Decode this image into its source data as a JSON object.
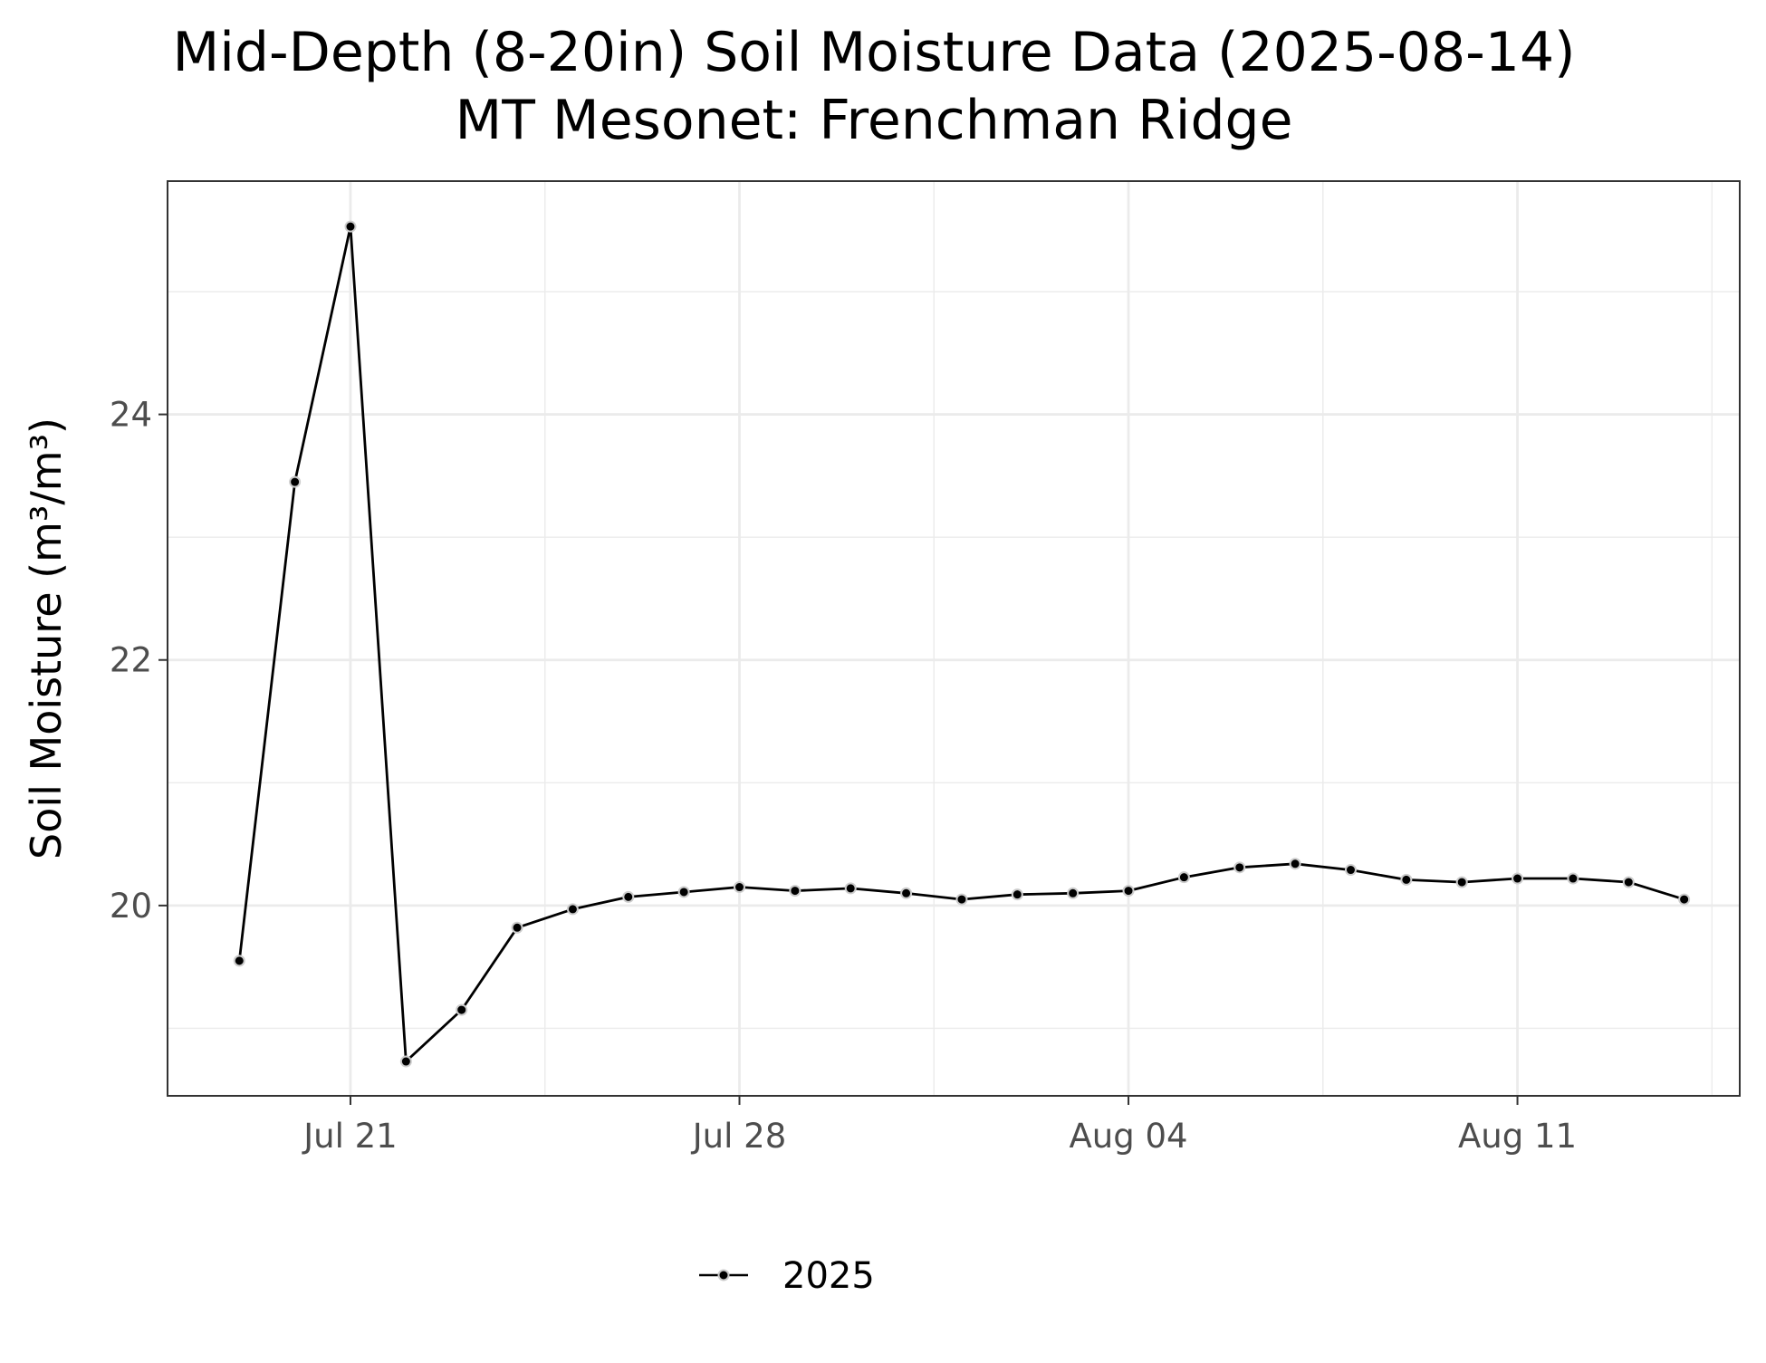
{
  "chart_data": {
    "type": "line",
    "title": "Mid-Depth (8-20in) Soil Moisture Data (2025-08-14)",
    "subtitle": "MT Mesonet: Frenchman Ridge",
    "xlabel": "",
    "ylabel": "Soil Moisture (m³/m³)",
    "x_ticks": [
      {
        "date": "2025-07-21",
        "label": "Jul 21"
      },
      {
        "date": "2025-07-28",
        "label": "Jul 28"
      },
      {
        "date": "2025-08-04",
        "label": "Aug 04"
      },
      {
        "date": "2025-08-11",
        "label": "Aug 11"
      }
    ],
    "y_ticks": [
      20,
      22,
      24
    ],
    "xlim": [
      "2025-07-17T17:00",
      "2025-08-15T00:00"
    ],
    "ylim": [
      18.45,
      25.9
    ],
    "grid": true,
    "legend_position": "bottom",
    "series": [
      {
        "name": "2025",
        "color": "#000000",
        "marker_outline": "#cccccc",
        "x": [
          "2025-07-19",
          "2025-07-20",
          "2025-07-21",
          "2025-07-22",
          "2025-07-23",
          "2025-07-24",
          "2025-07-25",
          "2025-07-26",
          "2025-07-27",
          "2025-07-28",
          "2025-07-29",
          "2025-07-30",
          "2025-07-31",
          "2025-08-01",
          "2025-08-02",
          "2025-08-03",
          "2025-08-04",
          "2025-08-05",
          "2025-08-06",
          "2025-08-07",
          "2025-08-08",
          "2025-08-09",
          "2025-08-10",
          "2025-08-11",
          "2025-08-12",
          "2025-08-13",
          "2025-08-14"
        ],
        "y": [
          19.55,
          23.45,
          25.53,
          18.73,
          19.15,
          19.82,
          19.97,
          20.07,
          20.11,
          20.15,
          20.12,
          20.14,
          20.1,
          20.05,
          20.09,
          20.1,
          20.12,
          20.23,
          20.31,
          20.34,
          20.29,
          20.21,
          20.19,
          20.22,
          20.22,
          20.19,
          20.05
        ]
      }
    ]
  }
}
